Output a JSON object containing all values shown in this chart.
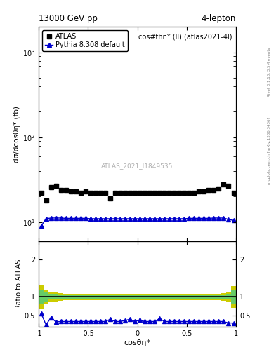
{
  "title_left": "13000 GeV pp",
  "title_right": "4-lepton",
  "plot_title": "cos#thη* (ll) (atlas2021-4l)",
  "xlabel": "cosθη*",
  "ylabel_main": "dσ/dcosθη* (fb)",
  "ylabel_ratio": "Ratio to ATLAS",
  "right_label_top": "Rivet 3.1.10, 3.5M events",
  "right_label_bot": "mcplots.cern.ch [arXiv:1306.3436]",
  "watermark": "ATLAS_2021_I1849535",
  "atlas_x": [
    -0.975,
    -0.925,
    -0.875,
    -0.825,
    -0.775,
    -0.725,
    -0.675,
    -0.625,
    -0.575,
    -0.525,
    -0.475,
    -0.425,
    -0.375,
    -0.325,
    -0.275,
    -0.225,
    -0.175,
    -0.125,
    -0.075,
    -0.025,
    0.025,
    0.075,
    0.125,
    0.175,
    0.225,
    0.275,
    0.325,
    0.375,
    0.425,
    0.475,
    0.525,
    0.575,
    0.625,
    0.675,
    0.725,
    0.775,
    0.825,
    0.875,
    0.925,
    0.975
  ],
  "atlas_y": [
    22,
    18,
    26,
    27,
    24,
    24,
    23,
    23,
    22,
    23,
    22,
    22,
    22,
    22,
    19,
    22,
    22,
    22,
    22,
    22,
    22,
    22,
    22,
    22,
    22,
    22,
    22,
    22,
    22,
    22,
    22,
    22,
    23,
    23,
    24,
    24,
    25,
    28,
    27,
    22
  ],
  "pythia_x": [
    -0.975,
    -0.925,
    -0.875,
    -0.825,
    -0.775,
    -0.725,
    -0.675,
    -0.625,
    -0.575,
    -0.525,
    -0.475,
    -0.425,
    -0.375,
    -0.325,
    -0.275,
    -0.225,
    -0.175,
    -0.125,
    -0.075,
    -0.025,
    0.025,
    0.075,
    0.125,
    0.175,
    0.225,
    0.275,
    0.325,
    0.375,
    0.425,
    0.475,
    0.525,
    0.575,
    0.625,
    0.675,
    0.725,
    0.775,
    0.825,
    0.875,
    0.925,
    0.975
  ],
  "pythia_y": [
    9.0,
    11.0,
    11.2,
    11.2,
    11.2,
    11.1,
    11.1,
    11.1,
    11.1,
    11.1,
    11.0,
    11.0,
    11.0,
    11.0,
    11.0,
    11.0,
    11.0,
    11.0,
    11.0,
    11.0,
    11.0,
    11.0,
    11.0,
    11.0,
    11.0,
    11.0,
    11.0,
    11.0,
    11.0,
    11.0,
    11.1,
    11.1,
    11.1,
    11.1,
    11.1,
    11.2,
    11.2,
    11.2,
    10.8,
    10.5
  ],
  "ratio_y": [
    0.56,
    0.25,
    0.45,
    0.33,
    0.34,
    0.34,
    0.34,
    0.34,
    0.34,
    0.34,
    0.34,
    0.34,
    0.34,
    0.34,
    0.4,
    0.34,
    0.34,
    0.37,
    0.4,
    0.34,
    0.38,
    0.34,
    0.34,
    0.34,
    0.42,
    0.34,
    0.34,
    0.34,
    0.34,
    0.34,
    0.34,
    0.34,
    0.34,
    0.34,
    0.34,
    0.34,
    0.34,
    0.34,
    0.3,
    0.3
  ],
  "band_x_edges": [
    -1.0,
    -0.95,
    -0.9,
    -0.85,
    -0.8,
    -0.75,
    -0.7,
    -0.65,
    -0.6,
    -0.55,
    -0.5,
    -0.45,
    -0.4,
    -0.35,
    -0.3,
    -0.25,
    -0.2,
    -0.15,
    -0.1,
    -0.05,
    0.0,
    0.05,
    0.1,
    0.15,
    0.2,
    0.25,
    0.3,
    0.35,
    0.4,
    0.45,
    0.5,
    0.55,
    0.6,
    0.65,
    0.7,
    0.75,
    0.8,
    0.85,
    0.9,
    0.95,
    1.0
  ],
  "band_yellow_lo": [
    0.68,
    0.8,
    0.87,
    0.88,
    0.9,
    0.91,
    0.92,
    0.92,
    0.92,
    0.92,
    0.92,
    0.92,
    0.92,
    0.92,
    0.92,
    0.92,
    0.92,
    0.92,
    0.92,
    0.92,
    0.92,
    0.92,
    0.92,
    0.92,
    0.92,
    0.92,
    0.92,
    0.92,
    0.92,
    0.92,
    0.92,
    0.92,
    0.92,
    0.92,
    0.92,
    0.92,
    0.92,
    0.9,
    0.87,
    0.7
  ],
  "band_yellow_hi": [
    1.32,
    1.2,
    1.13,
    1.12,
    1.1,
    1.09,
    1.08,
    1.08,
    1.08,
    1.08,
    1.08,
    1.08,
    1.08,
    1.08,
    1.08,
    1.08,
    1.08,
    1.08,
    1.08,
    1.08,
    1.08,
    1.08,
    1.08,
    1.08,
    1.08,
    1.08,
    1.08,
    1.08,
    1.08,
    1.08,
    1.08,
    1.08,
    1.08,
    1.08,
    1.08,
    1.08,
    1.08,
    1.1,
    1.13,
    1.3
  ],
  "band_green_lo": [
    0.8,
    0.88,
    0.93,
    0.94,
    0.95,
    0.95,
    0.96,
    0.96,
    0.96,
    0.96,
    0.96,
    0.96,
    0.96,
    0.96,
    0.96,
    0.96,
    0.96,
    0.96,
    0.96,
    0.96,
    0.96,
    0.96,
    0.96,
    0.96,
    0.96,
    0.96,
    0.96,
    0.96,
    0.96,
    0.96,
    0.96,
    0.96,
    0.96,
    0.96,
    0.96,
    0.96,
    0.96,
    0.95,
    0.93,
    0.82
  ],
  "band_green_hi": [
    1.2,
    1.12,
    1.07,
    1.06,
    1.05,
    1.05,
    1.04,
    1.04,
    1.04,
    1.04,
    1.04,
    1.04,
    1.04,
    1.04,
    1.04,
    1.04,
    1.04,
    1.04,
    1.04,
    1.04,
    1.04,
    1.04,
    1.04,
    1.04,
    1.04,
    1.04,
    1.04,
    1.04,
    1.04,
    1.04,
    1.04,
    1.04,
    1.04,
    1.04,
    1.04,
    1.04,
    1.04,
    1.05,
    1.07,
    1.18
  ],
  "ylim_main": [
    6,
    2000
  ],
  "ylim_ratio": [
    0.2,
    2.5
  ],
  "xlim": [
    -1.0,
    1.0
  ],
  "atlas_color": "black",
  "pythia_color": "#0000cc",
  "green_color": "#66cc66",
  "yellow_color": "#cccc00",
  "atlas_marker": "s",
  "pythia_marker": "^",
  "atlas_markersize": 4,
  "pythia_markersize": 4
}
